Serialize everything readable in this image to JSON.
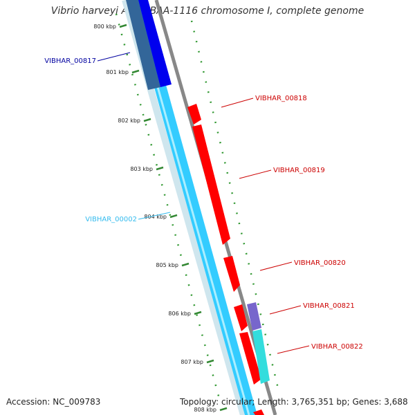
{
  "title": "Vibrio harveyi ATCC BAA-1116 chromosome I, complete genome",
  "footer": {
    "accession": "Accession: NC_009783",
    "summary": "Topology: circular; Length: 3,765,351 bp; Genes: 3,688"
  },
  "ticks": [
    "800 kbp",
    "801 kbp",
    "802 kbp",
    "803 kbp",
    "804 kbp",
    "805 kbp",
    "806 kbp",
    "807 kbp",
    "808 kbp"
  ],
  "genes": [
    {
      "name": "VIBHAR_00817",
      "color": "#0000a0"
    },
    {
      "name": "VIBHAR_00002",
      "color": "#33bbee"
    },
    {
      "name": "VIBHAR_00818",
      "color": "#cc0000"
    },
    {
      "name": "VIBHAR_00819",
      "color": "#cc0000"
    },
    {
      "name": "VIBHAR_00820",
      "color": "#cc0000"
    },
    {
      "name": "VIBHAR_00821",
      "color": "#cc0000"
    },
    {
      "name": "VIBHAR_00822",
      "color": "#cc0000"
    }
  ],
  "colors": {
    "forward_cds": "#ff0000",
    "reverse_cds": "#33ccff",
    "reverse_cds_dark": "#0000ee",
    "steel": "#336699",
    "purple": "#7766cc",
    "cyan": "#33dddd",
    "backbone": "#888888",
    "tick_mark": "#338833",
    "gc_dots": "#339933"
  }
}
